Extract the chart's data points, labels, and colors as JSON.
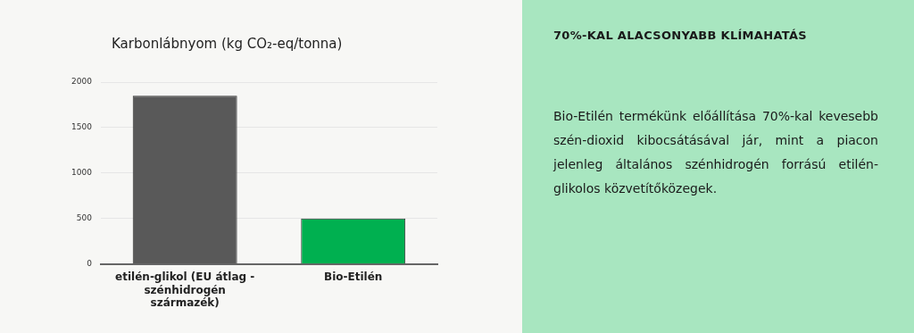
{
  "chart_data": [
    {
      "type": "bar",
      "title": "Karbonlábnyom (kg CO₂-eq/tonna)",
      "categories": [
        "etilén-glikol (EU átlag - szénhidrogén származék)",
        "Bio-Etilén"
      ],
      "values": [
        1850,
        500
      ],
      "colors": [
        "#595959",
        "#00b050"
      ],
      "ylim": [
        0,
        2000
      ],
      "yticks": [
        0,
        500,
        1000,
        1500,
        2000
      ],
      "grid": "y"
    },
    {
      "type": "other",
      "title": "70%-KAL ALACSONYABB KLÍMAHATÁS",
      "annotations": [
        "Bio-Etilén termékünk előállítása 70%-kal kevesebb szén-dioxid kibocsátásával jár, mint a piacon jelenleg általános szénhidrogén forrású etilén-glikolos közvetítőközegek."
      ]
    }
  ]
}
